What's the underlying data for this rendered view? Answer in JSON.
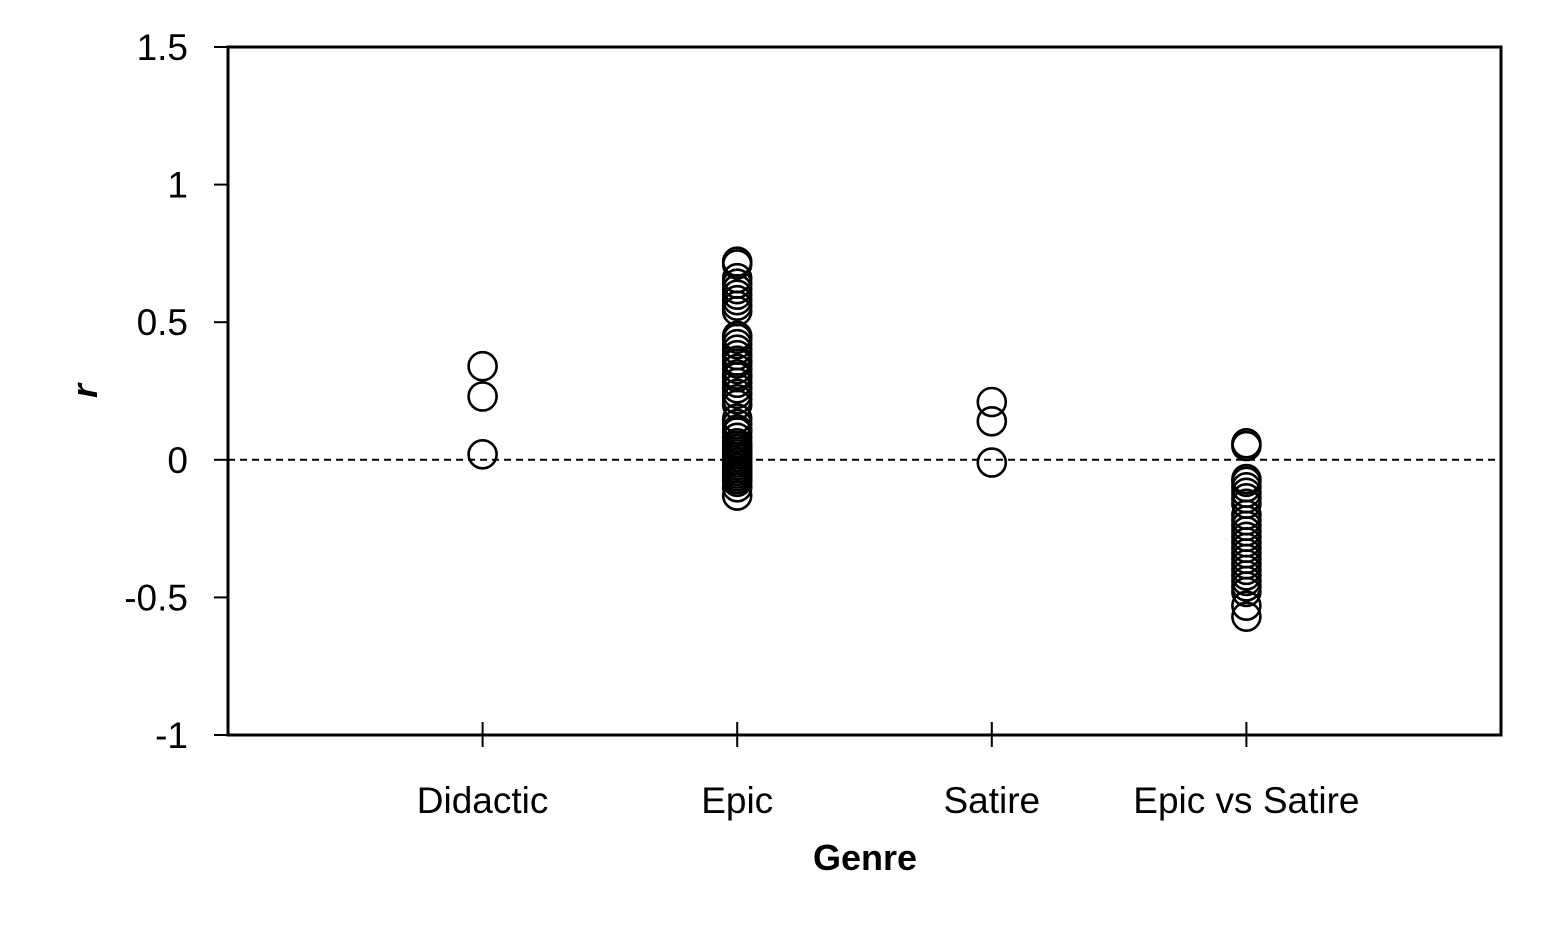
{
  "chart_data": {
    "type": "scatter",
    "title": "",
    "xlabel": "Genre",
    "ylabel": "r",
    "categories": [
      "Didactic",
      "Epic",
      "Satire",
      "Epic vs Satire"
    ],
    "ylim": [
      -1,
      1.5
    ],
    "yticks": [
      -1,
      -0.5,
      0,
      0.5,
      1,
      1.5
    ],
    "ytick_labels": [
      "-1",
      "-0.5",
      "0",
      "0.5",
      "1",
      "1.5"
    ],
    "reference_line": {
      "y": 0,
      "style": "dashed"
    },
    "grid": false,
    "legend": "none",
    "marker": "open-circle",
    "colors": {
      "marker": "#000000",
      "axis": "#000000",
      "background": "#ffffff"
    },
    "series": [
      {
        "category": "Didactic",
        "values": [
          0.34,
          0.23,
          0.02
        ]
      },
      {
        "category": "Epic",
        "values": [
          0.72,
          0.71,
          0.66,
          0.64,
          0.62,
          0.6,
          0.58,
          0.56,
          0.54,
          0.45,
          0.44,
          0.42,
          0.4,
          0.38,
          0.36,
          0.35,
          0.33,
          0.31,
          0.3,
          0.28,
          0.26,
          0.24,
          0.22,
          0.2,
          0.15,
          0.13,
          0.11,
          0.1,
          0.08,
          0.06,
          0.05,
          0.04,
          0.03,
          0.02,
          0.01,
          0.0,
          -0.01,
          -0.02,
          -0.03,
          -0.04,
          -0.05,
          -0.06,
          -0.07,
          -0.08,
          -0.1,
          -0.13
        ]
      },
      {
        "category": "Satire",
        "values": [
          0.21,
          0.14,
          -0.01
        ]
      },
      {
        "category": "Epic vs Satire",
        "values": [
          0.06,
          0.05,
          -0.07,
          -0.08,
          -0.1,
          -0.12,
          -0.14,
          -0.16,
          -0.2,
          -0.22,
          -0.24,
          -0.26,
          -0.28,
          -0.3,
          -0.32,
          -0.34,
          -0.36,
          -0.38,
          -0.4,
          -0.42,
          -0.44,
          -0.46,
          -0.48,
          -0.53,
          -0.57
        ]
      }
    ]
  }
}
